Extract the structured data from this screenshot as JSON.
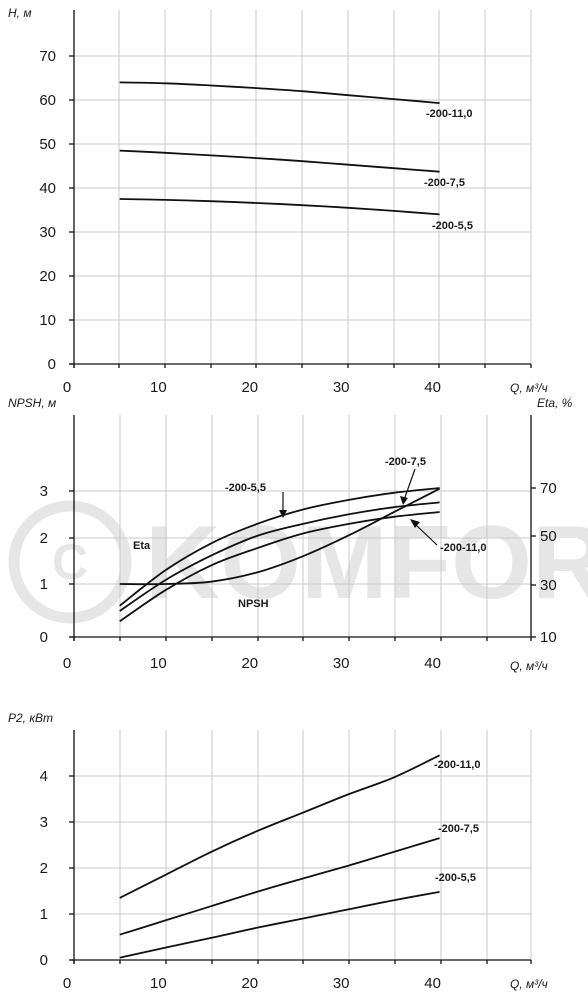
{
  "watermark": {
    "text": "KOMFORT"
  },
  "chart_data": [
    {
      "type": "line",
      "xlabel": "Q, м³/ч",
      "ylabel": "H, м",
      "xlim": [
        0,
        50
      ],
      "ylim": [
        0,
        80
      ],
      "xticks": [
        "0",
        "10",
        "20",
        "30",
        "40"
      ],
      "yticks": [
        "0",
        "10",
        "20",
        "30",
        "40",
        "50",
        "60",
        "70"
      ],
      "grid": true,
      "series": [
        {
          "name": "-200-11,0",
          "x": [
            5,
            10,
            15,
            20,
            25,
            30,
            35,
            40
          ],
          "values": [
            64,
            63.8,
            63.3,
            62.7,
            62,
            61.1,
            60.2,
            59.3
          ]
        },
        {
          "name": "-200-7,5",
          "x": [
            5,
            10,
            15,
            20,
            25,
            30,
            35,
            40
          ],
          "values": [
            48.5,
            48,
            47.4,
            46.8,
            46.1,
            45.3,
            44.5,
            43.7
          ]
        },
        {
          "name": "-200-5,5",
          "x": [
            5,
            10,
            15,
            20,
            25,
            30,
            35,
            40
          ],
          "values": [
            37.5,
            37.3,
            37,
            36.6,
            36.1,
            35.5,
            34.8,
            34
          ]
        }
      ]
    },
    {
      "type": "line",
      "xlabel": "Q, м³/ч",
      "ylabel": "NPSH, м",
      "y2label": "Eta, %",
      "xlim": [
        0,
        50
      ],
      "ylim": [
        0,
        4
      ],
      "y2lim": [
        10,
        90
      ],
      "xticks": [
        "0",
        "10",
        "20",
        "30",
        "40"
      ],
      "yticks": [
        "0",
        "1",
        "2",
        "3"
      ],
      "y2ticks": [
        "10",
        "30",
        "50",
        "70"
      ],
      "grid": true,
      "annotations": [
        "Eta",
        "NPSH"
      ],
      "series": [
        {
          "name": "-200-5,5",
          "axis": "y2",
          "x": [
            5,
            10,
            15,
            20,
            25,
            30,
            35,
            40
          ],
          "values": [
            22,
            36,
            47,
            55,
            61,
            65,
            68,
            70
          ]
        },
        {
          "name": "-200-7,5",
          "axis": "y2",
          "x": [
            5,
            10,
            15,
            20,
            25,
            30,
            35,
            40
          ],
          "values": [
            20,
            32,
            42,
            50,
            55,
            59,
            62,
            64
          ]
        },
        {
          "name": "-200-11,0",
          "axis": "y2",
          "x": [
            5,
            10,
            15,
            20,
            25,
            30,
            35,
            40
          ],
          "values": [
            16,
            28,
            38,
            45,
            51,
            55,
            58,
            60
          ]
        },
        {
          "name": "NPSH",
          "axis": "y",
          "x": [
            5,
            10,
            15,
            20,
            25,
            30,
            35,
            40
          ],
          "values": [
            1,
            1,
            1.05,
            1.25,
            1.6,
            2.05,
            2.55,
            3.05
          ]
        }
      ]
    },
    {
      "type": "line",
      "xlabel": "Q, м³/ч",
      "ylabel": "P2, кВт",
      "xlim": [
        0,
        50
      ],
      "ylim": [
        0,
        5
      ],
      "xticks": [
        "0",
        "10",
        "20",
        "30",
        "40"
      ],
      "yticks": [
        "0",
        "1",
        "2",
        "3",
        "4"
      ],
      "grid": true,
      "series": [
        {
          "name": "-200-11,0",
          "x": [
            5,
            10,
            15,
            20,
            25,
            30,
            35,
            40
          ],
          "values": [
            1.35,
            1.85,
            2.35,
            2.8,
            3.2,
            3.6,
            3.97,
            4.45
          ]
        },
        {
          "name": "-200-7,5",
          "x": [
            5,
            10,
            15,
            20,
            25,
            30,
            35,
            40
          ],
          "values": [
            0.55,
            0.86,
            1.17,
            1.48,
            1.77,
            2.05,
            2.35,
            2.65
          ]
        },
        {
          "name": "-200-5,5",
          "x": [
            5,
            10,
            15,
            20,
            25,
            30,
            35,
            40
          ],
          "values": [
            0.05,
            0.27,
            0.48,
            0.7,
            0.9,
            1.1,
            1.3,
            1.48
          ]
        }
      ]
    }
  ]
}
